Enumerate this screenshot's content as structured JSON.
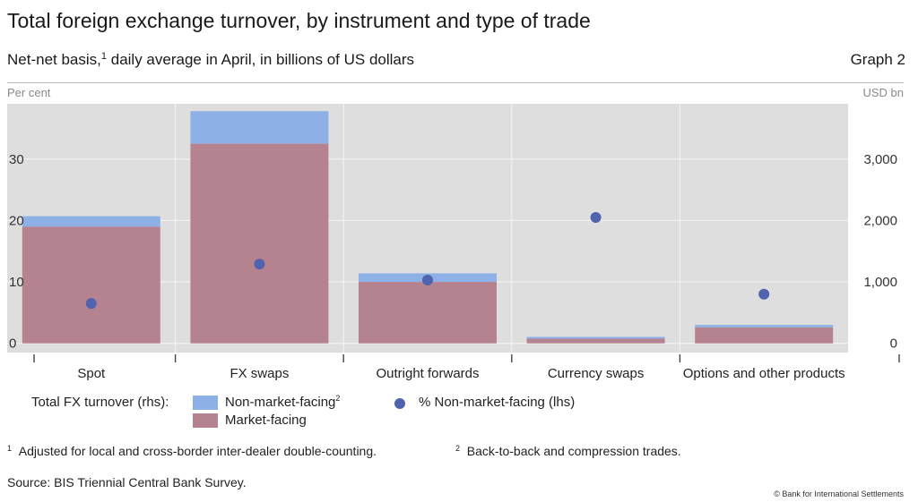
{
  "header": {
    "title": "Total foreign exchange turnover, by instrument and type of trade",
    "subtitle_before": "Net-net basis,",
    "subtitle_note": "1",
    "subtitle_after": " daily average in April, in billions of US dollars",
    "graph_label": "Graph 2",
    "lhs_unit": "Per cent",
    "rhs_unit": "USD bn"
  },
  "legend": {
    "group_label": "Total FX turnover (rhs):",
    "non_market": "Non-market-facing",
    "non_market_note": "2",
    "market": "Market-facing",
    "pct": "% Non-market-facing (lhs)"
  },
  "footnotes": {
    "n1_mark": "1",
    "n1_text": "Adjusted for local and cross-border inter-dealer double-counting.",
    "n2_mark": "2",
    "n2_text": "Back-to-back and compression trades.",
    "source": "Source: BIS Triennial Central Bank Survey.",
    "copyright": "© Bank for International Settlements"
  },
  "colors": {
    "market_facing": "#b5838f",
    "non_market_facing": "#8db0e6",
    "pct_dot": "#4f63ae",
    "plot_bg": "#dedede",
    "grid": "#f5f5f5"
  },
  "chart_data": {
    "type": "bar",
    "stacked": true,
    "categories": [
      "Spot",
      "FX swaps",
      "Outright forwards",
      "Currency swaps",
      "Options and other products"
    ],
    "series": [
      {
        "name": "Market-facing",
        "axis": "rhs",
        "values": [
          1900,
          3250,
          1000,
          75,
          260
        ]
      },
      {
        "name": "Non-market-facing",
        "axis": "rhs",
        "values": [
          170,
          530,
          140,
          30,
          40
        ]
      },
      {
        "name": "% Non-market-facing (lhs)",
        "axis": "lhs",
        "type": "scatter",
        "values": [
          6.5,
          12.9,
          10.3,
          20.5,
          8.0
        ]
      }
    ],
    "ylim_lhs": [
      -1.5,
      39
    ],
    "ylim_rhs": [
      -150,
      3900
    ],
    "lhs_ticks": [
      0,
      10,
      20,
      30
    ],
    "rhs_ticks": [
      0,
      1000,
      2000,
      3000
    ],
    "rhs_tick_labels": [
      "0",
      "1,000",
      "2,000",
      "3,000"
    ],
    "grid": true
  }
}
